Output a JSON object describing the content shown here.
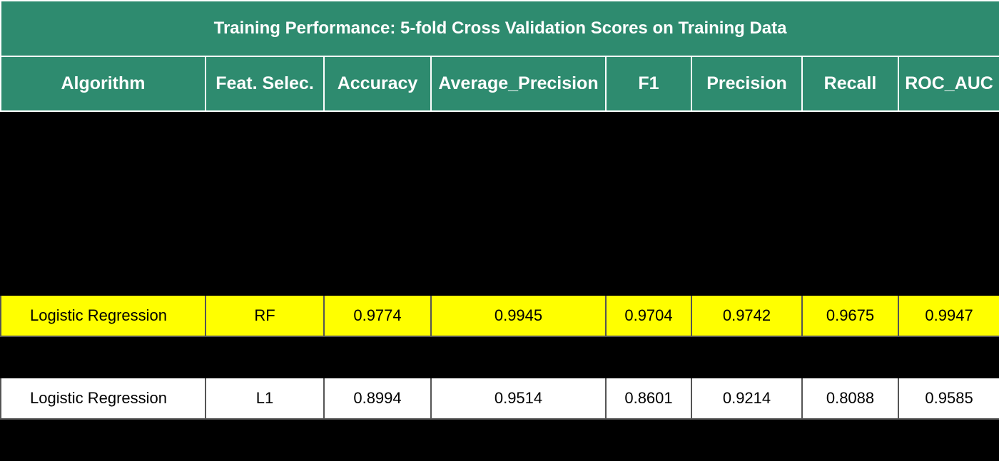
{
  "title": "Training Performance: 5-fold Cross Validation Scores on Training Data",
  "columns": [
    "Algorithm",
    "Feat. Selec.",
    "Accuracy",
    "Average_Precision",
    "F1",
    "Precision",
    "Recall",
    "ROC_AUC"
  ],
  "rows": [
    {
      "style": "dark",
      "cells": [
        "",
        "",
        "",
        "",
        "",
        "",
        "",
        ""
      ]
    },
    {
      "style": "dark",
      "cells": [
        "",
        "",
        "",
        "",
        "",
        "",
        "",
        ""
      ]
    },
    {
      "style": "dark",
      "cells": [
        "",
        "",
        "",
        "",
        "",
        "",
        "",
        ""
      ]
    },
    {
      "style": "dark tall",
      "cells": [
        "",
        "",
        "",
        "",
        "",
        "",
        "",
        ""
      ]
    },
    {
      "style": "highlight",
      "cells": [
        "Logistic Regression",
        "RF",
        "0.9774",
        "0.9945",
        "0.9704",
        "0.9742",
        "0.9675",
        "0.9947"
      ]
    },
    {
      "style": "dark",
      "cells": [
        "",
        "",
        "",
        "",
        "",
        "",
        "",
        ""
      ]
    },
    {
      "style": "white",
      "cells": [
        "Logistic Regression",
        "L1",
        "0.8994",
        "0.9514",
        "0.8601",
        "0.9214",
        "0.8088",
        "0.9585"
      ]
    },
    {
      "style": "dark",
      "cells": [
        "",
        "",
        "",
        "",
        "",
        "",
        "",
        ""
      ]
    }
  ],
  "colors": {
    "header_bg": "#2e8b6f",
    "highlight_bg": "#ffff00",
    "white_bg": "#ffffff",
    "dark_bg": "#000000"
  }
}
